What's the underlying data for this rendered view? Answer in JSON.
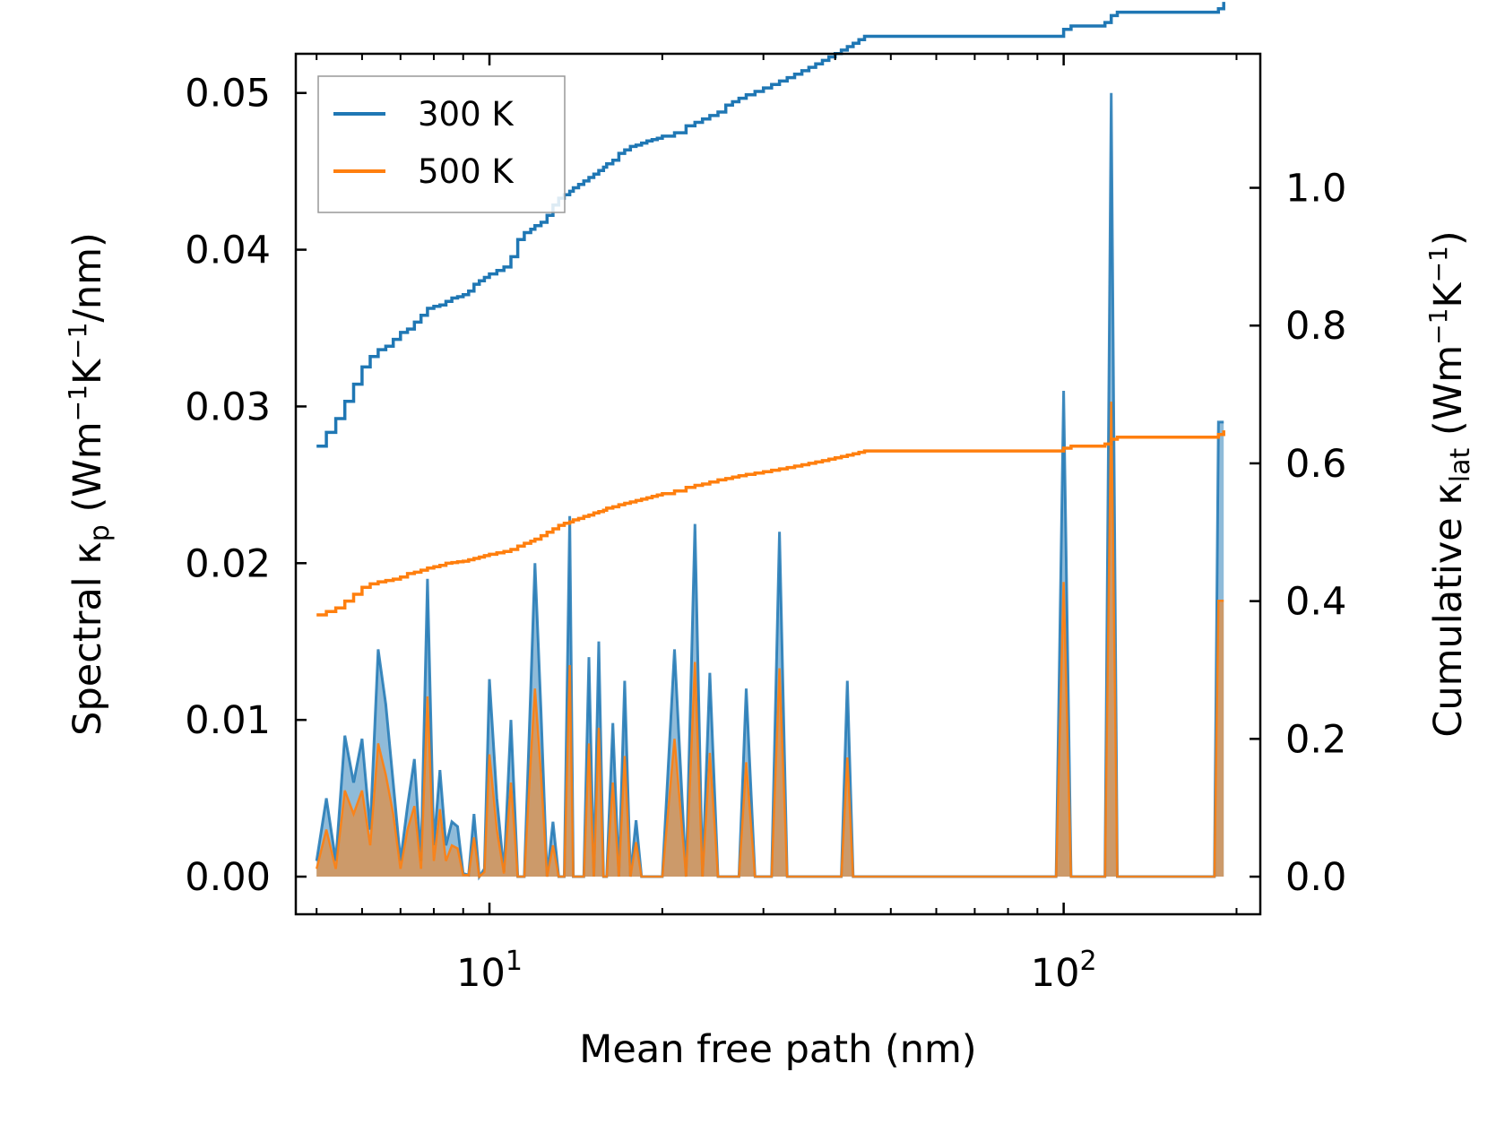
{
  "chart_data": {
    "type": "line",
    "title": "",
    "xlabel": "Mean free path (nm)",
    "xscale": "log",
    "xlim": [
      4.6,
      220
    ],
    "x_ticks": [
      {
        "value": 10,
        "base": "10",
        "exp": "1"
      },
      {
        "value": 100,
        "base": "10",
        "exp": "2"
      }
    ],
    "left_axis": {
      "label_main": "Spectral κ",
      "label_sub": "p",
      "label_unit_a": " (Wm",
      "label_sup1": "−1",
      "label_unit_b": "K",
      "label_sup2": "−1",
      "label_unit_c": "/nm)",
      "ylim": [
        -0.0024,
        0.0525
      ],
      "ticks": [
        0.0,
        0.01,
        0.02,
        0.03,
        0.04,
        0.05
      ],
      "tick_labels": [
        "0.00",
        "0.01",
        "0.02",
        "0.03",
        "0.04",
        "0.05"
      ]
    },
    "right_axis": {
      "label_main": "Cumulative κ",
      "label_sub": "lat",
      "label_unit_a": " (Wm",
      "label_sup1": "−1",
      "label_unit_b": "K",
      "label_sup2": "−1",
      "label_unit_c": ")",
      "ylim": [
        -0.0546,
        1.1946
      ],
      "ticks": [
        0.0,
        0.2,
        0.4,
        0.6,
        0.8,
        1.0
      ],
      "tick_labels": [
        "0.0",
        "0.2",
        "0.4",
        "0.6",
        "0.8",
        "1.0"
      ]
    },
    "legend": {
      "position": "top-left",
      "entries": [
        "300 K",
        "500 K"
      ]
    },
    "colors": {
      "300 K": "#1f77b4",
      "500 K": "#ff7f0e",
      "fill_300": "#1f77b4",
      "fill_500": "#ff7f0e"
    },
    "spectral_x": [
      5.0,
      5.2,
      5.4,
      5.6,
      5.8,
      6.0,
      6.2,
      6.4,
      6.6,
      6.8,
      7.0,
      7.2,
      7.4,
      7.6,
      7.8,
      8.0,
      8.2,
      8.4,
      8.6,
      8.8,
      9.0,
      9.2,
      9.4,
      9.6,
      9.8,
      10.0,
      10.3,
      10.6,
      10.9,
      11.2,
      11.5,
      11.8,
      12.0,
      12.3,
      12.6,
      12.9,
      13.2,
      13.5,
      13.8,
      14.0,
      14.3,
      14.6,
      14.9,
      15.2,
      15.5,
      15.8,
      16.0,
      16.4,
      16.8,
      17.2,
      17.6,
      18.0,
      18.4,
      18.8,
      19.2,
      19.6,
      20.0,
      21.0,
      22.0,
      22.8,
      23.5,
      24.2,
      25.0,
      25.8,
      26.5,
      27.2,
      28.0,
      29.0,
      30.0,
      31.0,
      32.0,
      33.0,
      34.0,
      35.0,
      36.0,
      37.0,
      38.0,
      39.0,
      40.0,
      41.0,
      42.0,
      43.0,
      44.0,
      45.0,
      60.0,
      80.0,
      97.0,
      100.0,
      103.0,
      115.0,
      118.0,
      121.0,
      124.0,
      170.0,
      183.0,
      186.0,
      190.0
    ],
    "series": [
      {
        "name": "300 K",
        "cumulative": [
          0.625,
          0.645,
          0.665,
          0.69,
          0.715,
          0.74,
          0.755,
          0.765,
          0.77,
          0.78,
          0.79,
          0.795,
          0.805,
          0.815,
          0.825,
          0.828,
          0.83,
          0.835,
          0.84,
          0.842,
          0.845,
          0.85,
          0.86,
          0.865,
          0.87,
          0.875,
          0.88,
          0.885,
          0.9,
          0.925,
          0.935,
          0.94,
          0.945,
          0.95,
          0.96,
          0.975,
          0.985,
          0.99,
          0.995,
          1.0,
          1.005,
          1.01,
          1.015,
          1.02,
          1.025,
          1.03,
          1.035,
          1.04,
          1.05,
          1.055,
          1.06,
          1.062,
          1.065,
          1.068,
          1.07,
          1.072,
          1.075,
          1.08,
          1.09,
          1.095,
          1.1,
          1.105,
          1.11,
          1.12,
          1.125,
          1.13,
          1.135,
          1.14,
          1.145,
          1.15,
          1.155,
          1.16,
          1.165,
          1.17,
          1.175,
          1.18,
          1.185,
          1.19,
          1.195,
          1.2,
          1.205,
          1.21,
          1.215,
          1.22,
          1.22,
          1.22,
          1.22,
          1.23,
          1.235,
          1.235,
          1.24,
          1.25,
          1.255,
          1.255,
          1.255,
          1.26,
          1.27
        ],
        "spectral": [
          0.001,
          0.005,
          0.001,
          0.009,
          0.006,
          0.0088,
          0.003,
          0.0145,
          0.011,
          0.006,
          0.001,
          0.0045,
          0.0075,
          0.001,
          0.019,
          0.002,
          0.0068,
          0.002,
          0.0035,
          0.0032,
          0.0002,
          0.0001,
          0.004,
          0.0,
          0.0005,
          0.0126,
          0.005,
          0.0003,
          0.01,
          0.0,
          0.0,
          0.012,
          0.02,
          0.0105,
          0.0,
          0.0035,
          0.0,
          0.0,
          0.023,
          0.0,
          0.0,
          0.0,
          0.014,
          0.0,
          0.015,
          0.0,
          0.0,
          0.0098,
          0.0,
          0.0125,
          0.0,
          0.0036,
          0.0,
          0.0,
          0.0,
          0.0,
          0.0,
          0.0145,
          0.0,
          0.0225,
          0.0,
          0.013,
          0.0,
          0.0,
          0.0,
          0.0,
          0.012,
          0.0,
          0.0,
          0.0,
          0.022,
          0.0,
          0.0,
          0.0,
          0.0,
          0.0,
          0.0,
          0.0,
          0.0,
          0.0,
          0.0125,
          0.0,
          0.0,
          0.0,
          0.0,
          0.0,
          0.0,
          0.031,
          0.0,
          0.0,
          0.0,
          0.05,
          0.0,
          0.0,
          0.0,
          0.029,
          0.029
        ]
      },
      {
        "name": "500 K",
        "cumulative": [
          0.38,
          0.385,
          0.39,
          0.4,
          0.41,
          0.42,
          0.425,
          0.428,
          0.43,
          0.432,
          0.435,
          0.44,
          0.442,
          0.445,
          0.448,
          0.45,
          0.452,
          0.455,
          0.456,
          0.457,
          0.458,
          0.46,
          0.462,
          0.464,
          0.466,
          0.468,
          0.47,
          0.472,
          0.475,
          0.48,
          0.484,
          0.487,
          0.49,
          0.495,
          0.5,
          0.505,
          0.51,
          0.513,
          0.515,
          0.518,
          0.52,
          0.523,
          0.525,
          0.528,
          0.53,
          0.532,
          0.535,
          0.537,
          0.54,
          0.542,
          0.544,
          0.546,
          0.548,
          0.55,
          0.552,
          0.554,
          0.556,
          0.56,
          0.565,
          0.568,
          0.57,
          0.573,
          0.576,
          0.578,
          0.58,
          0.582,
          0.584,
          0.586,
          0.588,
          0.59,
          0.592,
          0.594,
          0.596,
          0.598,
          0.6,
          0.602,
          0.604,
          0.606,
          0.608,
          0.61,
          0.612,
          0.614,
          0.616,
          0.618,
          0.618,
          0.618,
          0.618,
          0.622,
          0.625,
          0.625,
          0.628,
          0.635,
          0.638,
          0.638,
          0.638,
          0.642,
          0.648
        ],
        "spectral": [
          0.0005,
          0.003,
          0.0005,
          0.0055,
          0.004,
          0.0055,
          0.002,
          0.0085,
          0.0065,
          0.004,
          0.0005,
          0.003,
          0.0045,
          0.0005,
          0.0115,
          0.001,
          0.0043,
          0.001,
          0.002,
          0.0018,
          0.0001,
          0.0001,
          0.0025,
          0.0,
          0.0003,
          0.0078,
          0.003,
          0.0002,
          0.006,
          0.0,
          0.0,
          0.0075,
          0.012,
          0.0065,
          0.0,
          0.002,
          0.0,
          0.0,
          0.0135,
          0.0,
          0.0,
          0.0,
          0.0085,
          0.0,
          0.0095,
          0.0,
          0.0,
          0.006,
          0.0,
          0.0077,
          0.0,
          0.0022,
          0.0,
          0.0,
          0.0,
          0.0,
          0.0,
          0.0088,
          0.0,
          0.0137,
          0.0,
          0.0079,
          0.0,
          0.0,
          0.0,
          0.0,
          0.0073,
          0.0,
          0.0,
          0.0,
          0.0133,
          0.0,
          0.0,
          0.0,
          0.0,
          0.0,
          0.0,
          0.0,
          0.0,
          0.0,
          0.0076,
          0.0,
          0.0,
          0.0,
          0.0,
          0.0,
          0.0,
          0.0188,
          0.0,
          0.0,
          0.0,
          0.0303,
          0.0,
          0.0,
          0.0,
          0.0176,
          0.0176
        ]
      }
    ]
  }
}
